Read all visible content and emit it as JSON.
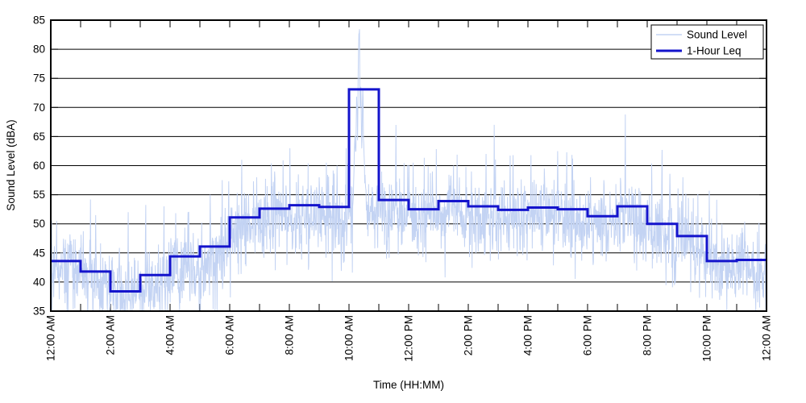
{
  "figure": {
    "xlabel": "Time (HH:MM)",
    "ylabel": "Sound Level (dBA)",
    "background": "#ffffff",
    "border_color": "#000000",
    "grid_color": "#000000",
    "legend": {
      "position": "top-right",
      "items": [
        {
          "label": "Sound Level",
          "color": "#c3d3f3",
          "line_width": 1.5
        },
        {
          "label": "1-Hour Leq",
          "color": "#1414cc",
          "line_width": 3
        }
      ]
    }
  },
  "chart_data": {
    "type": "line",
    "title": "",
    "xlabel": "Time (HH:MM)",
    "ylabel": "Sound Level (dBA)",
    "ylim": [
      35,
      85
    ],
    "xlim_hours": [
      0,
      24
    ],
    "grid": "horizontal-only",
    "y_ticks": [
      35,
      40,
      45,
      50,
      55,
      60,
      65,
      70,
      75,
      80,
      85
    ],
    "x_tick_label_every_hours": 2,
    "x_minor_tick_every_hours": 1,
    "x_tick_labels": [
      "12:00 AM",
      "2:00 AM",
      "4:00 AM",
      "6:00 AM",
      "8:00 AM",
      "10:00 AM",
      "12:00 PM",
      "2:00 PM",
      "4:00 PM",
      "6:00 PM",
      "8:00 PM",
      "10:00 PM",
      "12:00 AM"
    ],
    "series": [
      {
        "name": "1-Hour Leq",
        "render": "step-hourly",
        "color": "#1414cc",
        "width": 3,
        "hours": [
          0,
          1,
          2,
          3,
          4,
          5,
          6,
          7,
          8,
          9,
          10,
          11,
          12,
          13,
          14,
          15,
          16,
          17,
          18,
          19,
          20,
          21,
          22,
          23
        ],
        "values": [
          43.6,
          41.8,
          38.4,
          41.2,
          44.4,
          46.1,
          51.1,
          52.6,
          53.2,
          52.9,
          73.1,
          54.1,
          52.5,
          53.9,
          53.0,
          52.4,
          52.8,
          52.5,
          51.3,
          53.0,
          50.0,
          47.9,
          43.6,
          43.8
        ]
      },
      {
        "name": "Sound Level",
        "render": "noisy-trace",
        "color": "#c3d3f3",
        "width": 1,
        "floor": 35.1,
        "ceiling": 84.7,
        "samples": 2200,
        "seed": 42,
        "hourly_median": [
          42.5,
          40.5,
          38.0,
          39.5,
          42.0,
          44.0,
          49.5,
          51.0,
          51.5,
          51.0,
          52.0,
          52.0,
          51.5,
          52.5,
          51.5,
          51.0,
          51.5,
          51.0,
          50.0,
          50.5,
          48.5,
          46.0,
          42.5,
          42.0
        ],
        "hourly_sigma": [
          3.0,
          3.0,
          2.6,
          3.0,
          3.2,
          3.4,
          3.0,
          2.8,
          2.8,
          3.0,
          2.8,
          2.6,
          2.8,
          2.6,
          2.8,
          2.8,
          2.8,
          2.8,
          2.8,
          3.0,
          3.0,
          3.0,
          2.6,
          2.6
        ],
        "spikes": [
          [
            0.2,
            50.5
          ],
          [
            1.5,
            51.5
          ],
          [
            2.6,
            52.0
          ],
          [
            3.8,
            53.0
          ],
          [
            4.6,
            52.0
          ],
          [
            5.35,
            55.0
          ],
          [
            5.75,
            57.5
          ],
          [
            6.4,
            61.0
          ],
          [
            6.9,
            58.0
          ],
          [
            7.5,
            59.0
          ],
          [
            8.3,
            58.5
          ],
          [
            9.0,
            58.0
          ],
          [
            9.6,
            60.0
          ],
          [
            9.9,
            63.0
          ],
          [
            11.1,
            59.0
          ],
          [
            11.57,
            67.0
          ],
          [
            12.15,
            60.5
          ],
          [
            12.8,
            59.0
          ],
          [
            13.5,
            60.0
          ],
          [
            14.1,
            59.0
          ],
          [
            14.6,
            62.0
          ],
          [
            15.5,
            61.8
          ],
          [
            16.1,
            61.8
          ],
          [
            16.55,
            59.5
          ],
          [
            17.0,
            62.5
          ],
          [
            17.3,
            62.3
          ],
          [
            18.1,
            58.0
          ],
          [
            18.55,
            57.5
          ],
          [
            19.27,
            68.8
          ],
          [
            20.5,
            62.7
          ],
          [
            21.2,
            58.0
          ],
          [
            22.5,
            50.0
          ],
          [
            23.2,
            48.5
          ]
        ],
        "burst_envelope": [
          [
            10.15,
            56.0
          ],
          [
            10.2,
            66.0
          ],
          [
            10.23,
            60.0
          ],
          [
            10.26,
            73.0
          ],
          [
            10.29,
            65.0
          ],
          [
            10.32,
            80.5
          ],
          [
            10.35,
            84.7
          ],
          [
            10.37,
            68.0
          ],
          [
            10.4,
            74.5
          ],
          [
            10.43,
            62.0
          ],
          [
            10.46,
            75.5
          ],
          [
            10.49,
            63.0
          ],
          [
            10.53,
            58.0
          ],
          [
            10.58,
            55.0
          ]
        ]
      }
    ]
  }
}
